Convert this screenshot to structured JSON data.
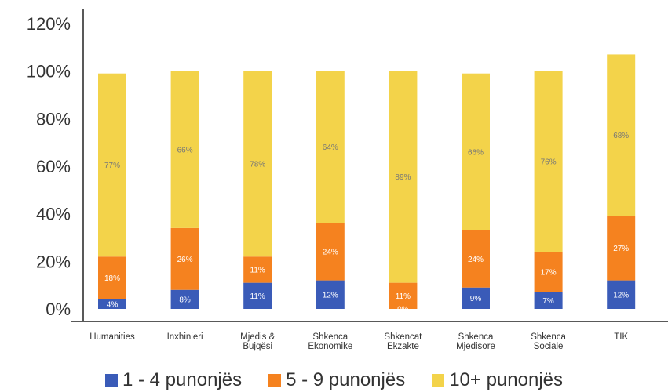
{
  "chart_data": {
    "type": "bar",
    "stacked": true,
    "categories": [
      [
        "Humanities"
      ],
      [
        "Inxhinieri"
      ],
      [
        "Mjedis &",
        "Bujqësi"
      ],
      [
        "Shkenca",
        "Ekonomike"
      ],
      [
        "Shkencat",
        "Ekzakte"
      ],
      [
        "Shkenca",
        "Mjedisore"
      ],
      [
        "Shkenca",
        "Sociale"
      ],
      [
        "TIK"
      ]
    ],
    "series": [
      {
        "name": "1 - 4 punonjës",
        "color": "#3a5bb8",
        "label_color": "#ffffff",
        "values": [
          4,
          8,
          11,
          12,
          0,
          9,
          7,
          12
        ],
        "labels": [
          "4%",
          "8%",
          "11%",
          "12%",
          "0%",
          "9%",
          "7%",
          "12%"
        ]
      },
      {
        "name": "5 - 9 punonjës",
        "color": "#f5821f",
        "label_color": "#ffffff",
        "values": [
          18,
          26,
          11,
          24,
          11,
          24,
          17,
          27
        ],
        "labels": [
          "18%",
          "26%",
          "11%",
          "24%",
          "11%",
          "24%",
          "17%",
          "27%"
        ]
      },
      {
        "name": "10+ punonjës",
        "color": "#f3d34a",
        "label_color": "#777777",
        "values": [
          77,
          66,
          78,
          64,
          89,
          66,
          76,
          68
        ],
        "labels": [
          "77%",
          "66%",
          "78%",
          "64%",
          "89%",
          "66%",
          "76%",
          "68%"
        ]
      }
    ],
    "yticks": [
      "0%",
      "20%",
      "40%",
      "60%",
      "80%",
      "100%",
      "120%"
    ],
    "ylim": [
      0,
      120
    ],
    "grid": false,
    "legend_position": "bottom"
  }
}
